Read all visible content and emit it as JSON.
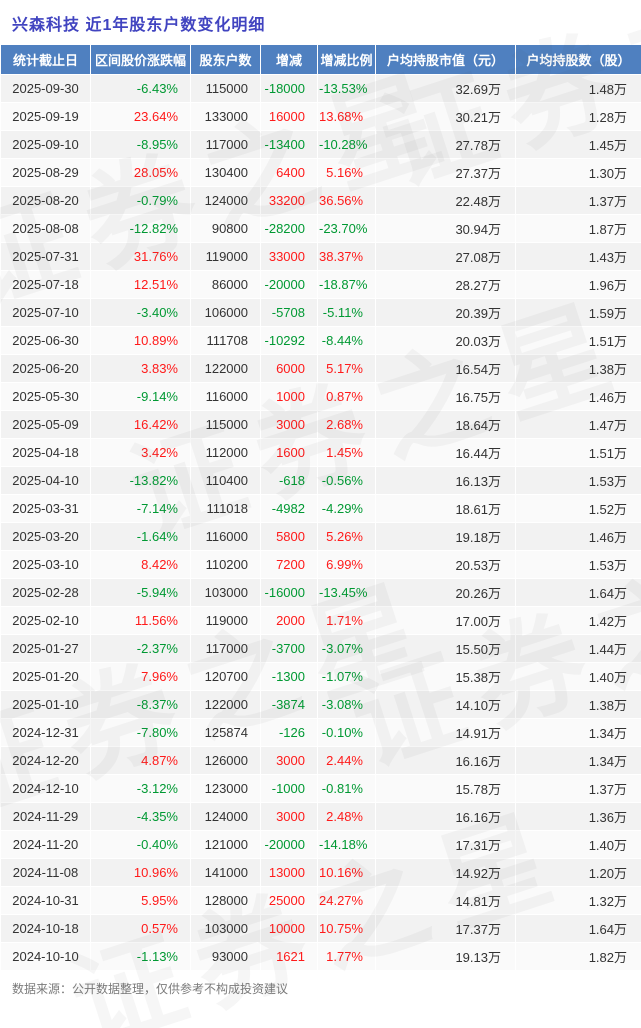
{
  "title": "兴森科技 近1年股东户数变化明细",
  "footer": "数据来源：公开数据整理，仅供参考不构成投资建议",
  "watermark": "证券之星",
  "colors": {
    "positive": "#ff1a1a",
    "negative": "#009933",
    "header_bg": "#4f80c0",
    "title": "#4144c0",
    "row_odd": "#f2f2f2",
    "row_even": "#fafafa"
  },
  "chart_data": {
    "type": "table",
    "title": "兴森科技 近1年股东户数变化明细",
    "columns": [
      "统计截止日",
      "区间股价涨跌幅",
      "股东户数",
      "增减",
      "增减比例",
      "户均持股市值（元）",
      "户均持股数（股）"
    ],
    "rows": [
      [
        "2025-09-30",
        "-6.43%",
        "115000",
        "-18000",
        "-13.53%",
        "32.69万",
        "1.48万"
      ],
      [
        "2025-09-19",
        "23.64%",
        "133000",
        "16000",
        "13.68%",
        "30.21万",
        "1.28万"
      ],
      [
        "2025-09-10",
        "-8.95%",
        "117000",
        "-13400",
        "-10.28%",
        "27.78万",
        "1.45万"
      ],
      [
        "2025-08-29",
        "28.05%",
        "130400",
        "6400",
        "5.16%",
        "27.37万",
        "1.30万"
      ],
      [
        "2025-08-20",
        "-0.79%",
        "124000",
        "33200",
        "36.56%",
        "22.48万",
        "1.37万"
      ],
      [
        "2025-08-08",
        "-12.82%",
        "90800",
        "-28200",
        "-23.70%",
        "30.94万",
        "1.87万"
      ],
      [
        "2025-07-31",
        "31.76%",
        "119000",
        "33000",
        "38.37%",
        "27.08万",
        "1.43万"
      ],
      [
        "2025-07-18",
        "12.51%",
        "86000",
        "-20000",
        "-18.87%",
        "28.27万",
        "1.96万"
      ],
      [
        "2025-07-10",
        "-3.40%",
        "106000",
        "-5708",
        "-5.11%",
        "20.39万",
        "1.59万"
      ],
      [
        "2025-06-30",
        "10.89%",
        "111708",
        "-10292",
        "-8.44%",
        "20.03万",
        "1.51万"
      ],
      [
        "2025-06-20",
        "3.83%",
        "122000",
        "6000",
        "5.17%",
        "16.54万",
        "1.38万"
      ],
      [
        "2025-05-30",
        "-9.14%",
        "116000",
        "1000",
        "0.87%",
        "16.75万",
        "1.46万"
      ],
      [
        "2025-05-09",
        "16.42%",
        "115000",
        "3000",
        "2.68%",
        "18.64万",
        "1.47万"
      ],
      [
        "2025-04-18",
        "3.42%",
        "112000",
        "1600",
        "1.45%",
        "16.44万",
        "1.51万"
      ],
      [
        "2025-04-10",
        "-13.82%",
        "110400",
        "-618",
        "-0.56%",
        "16.13万",
        "1.53万"
      ],
      [
        "2025-03-31",
        "-7.14%",
        "111018",
        "-4982",
        "-4.29%",
        "18.61万",
        "1.52万"
      ],
      [
        "2025-03-20",
        "-1.64%",
        "116000",
        "5800",
        "5.26%",
        "19.18万",
        "1.46万"
      ],
      [
        "2025-03-10",
        "8.42%",
        "110200",
        "7200",
        "6.99%",
        "20.53万",
        "1.53万"
      ],
      [
        "2025-02-28",
        "-5.94%",
        "103000",
        "-16000",
        "-13.45%",
        "20.26万",
        "1.64万"
      ],
      [
        "2025-02-10",
        "11.56%",
        "119000",
        "2000",
        "1.71%",
        "17.00万",
        "1.42万"
      ],
      [
        "2025-01-27",
        "-2.37%",
        "117000",
        "-3700",
        "-3.07%",
        "15.50万",
        "1.44万"
      ],
      [
        "2025-01-20",
        "7.96%",
        "120700",
        "-1300",
        "-1.07%",
        "15.38万",
        "1.40万"
      ],
      [
        "2025-01-10",
        "-8.37%",
        "122000",
        "-3874",
        "-3.08%",
        "14.10万",
        "1.38万"
      ],
      [
        "2024-12-31",
        "-7.80%",
        "125874",
        "-126",
        "-0.10%",
        "14.91万",
        "1.34万"
      ],
      [
        "2024-12-20",
        "4.87%",
        "126000",
        "3000",
        "2.44%",
        "16.16万",
        "1.34万"
      ],
      [
        "2024-12-10",
        "-3.12%",
        "123000",
        "-1000",
        "-0.81%",
        "15.78万",
        "1.37万"
      ],
      [
        "2024-11-29",
        "-4.35%",
        "124000",
        "3000",
        "2.48%",
        "16.16万",
        "1.36万"
      ],
      [
        "2024-11-20",
        "-0.40%",
        "121000",
        "-20000",
        "-14.18%",
        "17.31万",
        "1.40万"
      ],
      [
        "2024-11-08",
        "10.96%",
        "141000",
        "13000",
        "10.16%",
        "14.92万",
        "1.20万"
      ],
      [
        "2024-10-31",
        "5.95%",
        "128000",
        "25000",
        "24.27%",
        "14.81万",
        "1.32万"
      ],
      [
        "2024-10-18",
        "0.57%",
        "103000",
        "10000",
        "10.75%",
        "17.37万",
        "1.64万"
      ],
      [
        "2024-10-10",
        "-1.13%",
        "93000",
        "1621",
        "1.77%",
        "19.13万",
        "1.82万"
      ]
    ]
  }
}
